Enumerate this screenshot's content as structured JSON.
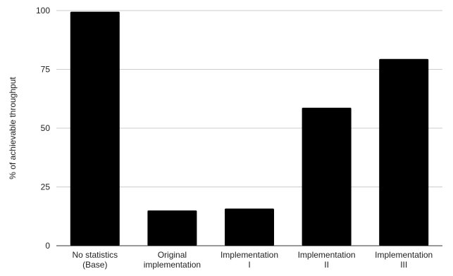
{
  "chart_data": {
    "type": "bar",
    "title": "",
    "xlabel": "",
    "ylabel": "% of achievable throughput",
    "categories": [
      [
        "No statistics",
        "(Base)"
      ],
      [
        "Original",
        "implementation"
      ],
      [
        "Implementation",
        "I"
      ],
      [
        "Implementation",
        "II"
      ],
      [
        "Implementation",
        "III"
      ]
    ],
    "values": [
      99.5,
      15,
      15.8,
      58.7,
      79.4
    ],
    "ylim": [
      0,
      100
    ],
    "yticks": [
      0,
      25,
      50,
      75,
      100
    ],
    "grid": true,
    "legend": "none",
    "bar_color": "#000000",
    "grid_color": "#cccccc"
  }
}
